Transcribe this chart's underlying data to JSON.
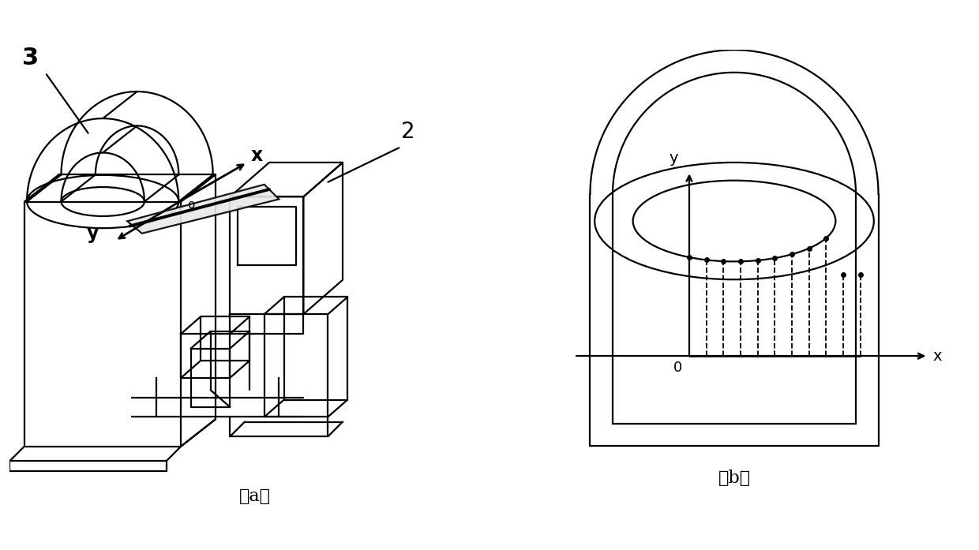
{
  "bg_color": "#ffffff",
  "line_color": "#000000",
  "label_a": "（a）",
  "label_b": "（b）",
  "label_3": "3",
  "label_2": "2",
  "label_x": "x",
  "label_y": "y",
  "label_o": "o",
  "label_0": "0"
}
